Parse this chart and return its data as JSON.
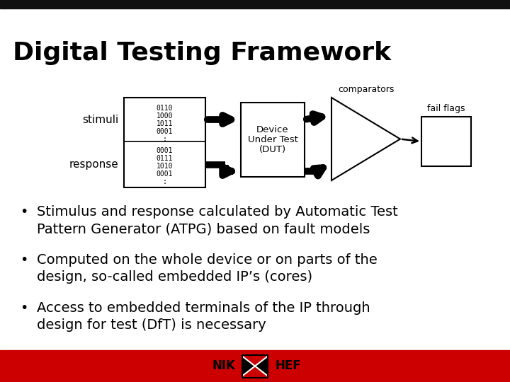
{
  "title": "Digital Testing Framework",
  "title_fontsize": 26,
  "slide_bg": "#ffffff",
  "stimuli_label": "stimuli",
  "response_label": "response",
  "stimuli_data": [
    "0110",
    "1000",
    "1011",
    "0001",
    ":"
  ],
  "response_data": [
    "0001",
    "0111",
    "1010",
    "0001",
    ":"
  ],
  "dut_label": [
    "Device",
    "Under Test",
    "(DUT)"
  ],
  "comparators_label": "comparators",
  "fail_flags_label": "fail flags",
  "bullet_points": [
    "Stimulus and response calculated by Automatic Test\nPattern Generator (ATPG) based on fault models",
    "Computed on the whole device or on parts of the\ndesign, so-called embedded IP’s (cores)",
    "Access to embedded terminals of the IP through\ndesign for test (DfT) is necessary"
  ],
  "text_color": "#000000",
  "footer_color": "#cc0000"
}
